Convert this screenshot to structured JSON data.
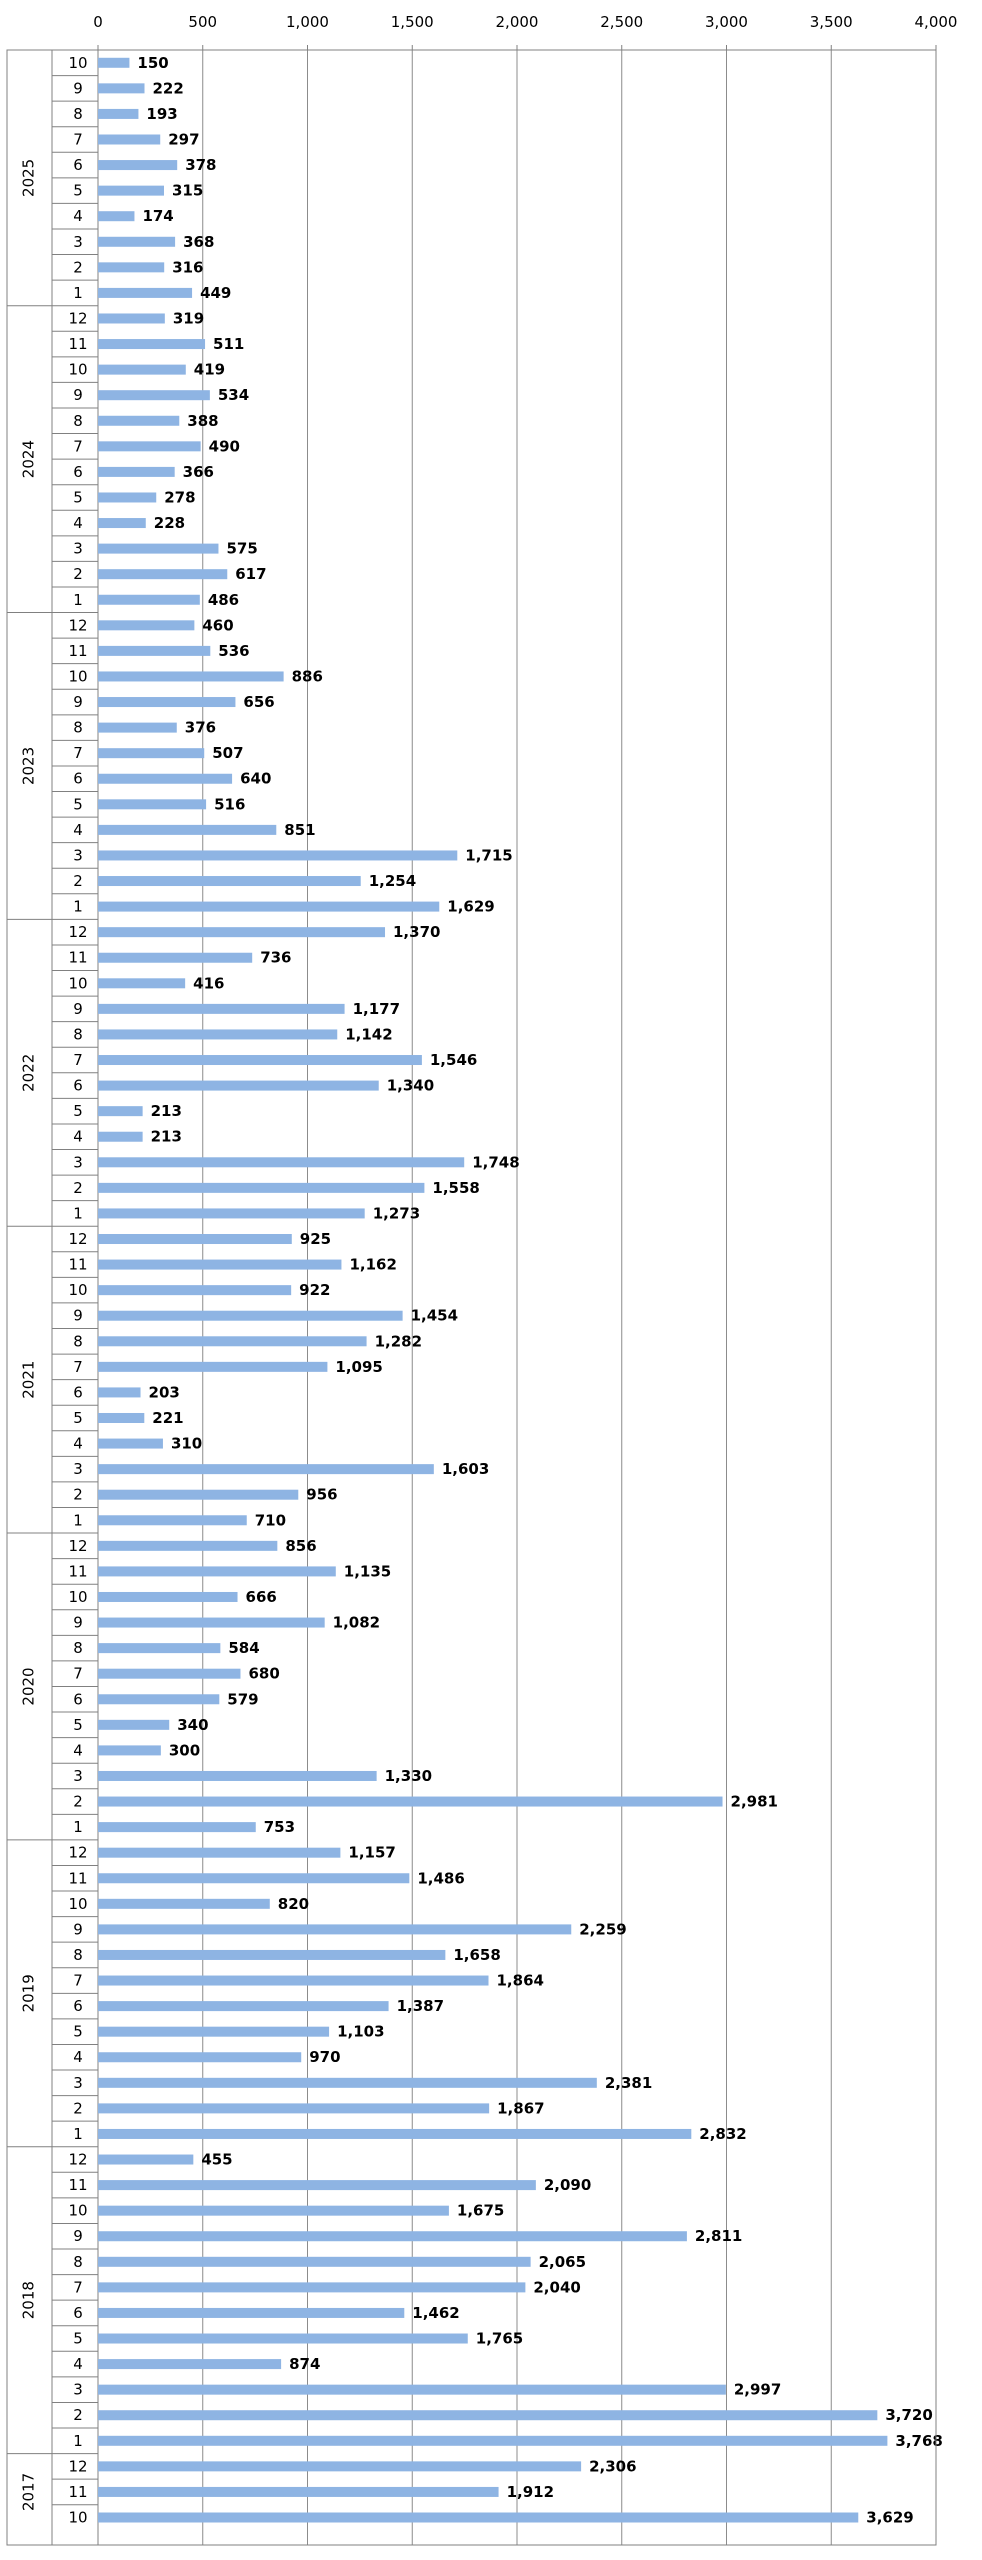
{
  "chart_data": {
    "type": "bar",
    "orientation": "horizontal",
    "xlim": [
      0,
      4000
    ],
    "x_ticks": [
      "0",
      "500",
      "1,000",
      "1,500",
      "2,000",
      "2,500",
      "3,000",
      "3,500",
      "4,000"
    ],
    "grid": true,
    "legend": "none",
    "colors": {
      "bar": "#8eb4e3",
      "grid": "#8c8c8c",
      "frame": "#808080",
      "text": "#000000"
    },
    "groups": [
      {
        "year": "2025",
        "months": [
          "10",
          "9",
          "8",
          "7",
          "6",
          "5",
          "4",
          "3",
          "2",
          "1"
        ],
        "values": [
          150,
          222,
          193,
          297,
          378,
          315,
          174,
          368,
          316,
          449
        ],
        "labels": [
          "150",
          "222",
          "193",
          "297",
          "378",
          "315",
          "174",
          "368",
          "316",
          "449"
        ]
      },
      {
        "year": "2024",
        "months": [
          "12",
          "11",
          "10",
          "9",
          "8",
          "7",
          "6",
          "5",
          "4",
          "3",
          "2",
          "1"
        ],
        "values": [
          319,
          511,
          419,
          534,
          388,
          490,
          366,
          278,
          228,
          575,
          617,
          486
        ],
        "labels": [
          "319",
          "511",
          "419",
          "534",
          "388",
          "490",
          "366",
          "278",
          "228",
          "575",
          "617",
          "486"
        ]
      },
      {
        "year": "2023",
        "months": [
          "12",
          "11",
          "10",
          "9",
          "8",
          "7",
          "6",
          "5",
          "4",
          "3",
          "2",
          "1"
        ],
        "values": [
          460,
          536,
          886,
          656,
          376,
          507,
          640,
          516,
          851,
          1715,
          1254,
          1629
        ],
        "labels": [
          "460",
          "536",
          "886",
          "656",
          "376",
          "507",
          "640",
          "516",
          "851",
          "1,715",
          "1,254",
          "1,629"
        ]
      },
      {
        "year": "2022",
        "months": [
          "12",
          "11",
          "10",
          "9",
          "8",
          "7",
          "6",
          "5",
          "4",
          "3",
          "2",
          "1"
        ],
        "values": [
          1370,
          736,
          416,
          1177,
          1142,
          1546,
          1340,
          213,
          213,
          1748,
          1558,
          1273
        ],
        "labels": [
          "1,370",
          "736",
          "416",
          "1,177",
          "1,142",
          "1,546",
          "1,340",
          "213",
          "213",
          "1,748",
          "1,558",
          "1,273"
        ]
      },
      {
        "year": "2021",
        "months": [
          "12",
          "11",
          "10",
          "9",
          "8",
          "7",
          "6",
          "5",
          "4",
          "3",
          "2",
          "1"
        ],
        "values": [
          925,
          1162,
          922,
          1454,
          1282,
          1095,
          203,
          221,
          310,
          1603,
          956,
          710
        ],
        "labels": [
          "925",
          "1,162",
          "922",
          "1,454",
          "1,282",
          "1,095",
          "203",
          "221",
          "310",
          "1,603",
          "956",
          "710"
        ]
      },
      {
        "year": "2020",
        "months": [
          "12",
          "11",
          "10",
          "9",
          "8",
          "7",
          "6",
          "5",
          "4",
          "3",
          "2",
          "1"
        ],
        "values": [
          856,
          1135,
          666,
          1082,
          584,
          680,
          579,
          340,
          300,
          1330,
          2981,
          753
        ],
        "labels": [
          "856",
          "1,135",
          "666",
          "1,082",
          "584",
          "680",
          "579",
          "340",
          "300",
          "1,330",
          "2,981",
          "753"
        ]
      },
      {
        "year": "2019",
        "months": [
          "12",
          "11",
          "10",
          "9",
          "8",
          "7",
          "6",
          "5",
          "4",
          "3",
          "2",
          "1"
        ],
        "values": [
          1157,
          1486,
          820,
          2259,
          1658,
          1864,
          1387,
          1103,
          970,
          2381,
          1867,
          2832
        ],
        "labels": [
          "1,157",
          "1,486",
          "820",
          "2,259",
          "1,658",
          "1,864",
          "1,387",
          "1,103",
          "970",
          "2,381",
          "1,867",
          "2,832"
        ]
      },
      {
        "year": "2018",
        "months": [
          "12",
          "11",
          "10",
          "9",
          "8",
          "7",
          "6",
          "5",
          "4",
          "3",
          "2",
          "1"
        ],
        "values": [
          455,
          2090,
          1675,
          2811,
          2065,
          2040,
          1462,
          1765,
          874,
          2997,
          3720,
          3768
        ],
        "labels": [
          "455",
          "2,090",
          "1,675",
          "2,811",
          "2,065",
          "2,040",
          "1,462",
          "1,765",
          "874",
          "2,997",
          "3,720",
          "3,768"
        ]
      },
      {
        "year": "2017",
        "months": [
          "12",
          "11",
          "10"
        ],
        "values": [
          2306,
          1912,
          3629
        ],
        "labels": [
          "2,306",
          "1,912",
          "3,629"
        ]
      }
    ]
  }
}
